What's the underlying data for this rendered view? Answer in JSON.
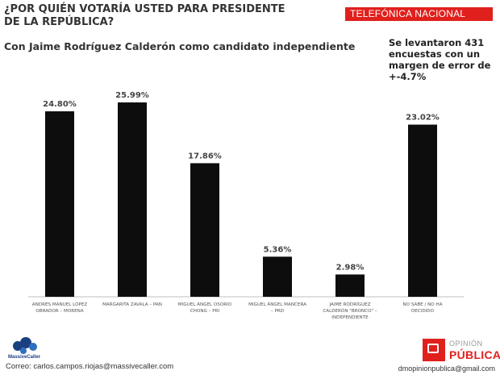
{
  "header": {
    "title_line1": "¿POR QUIÉN VOTARÍA USTED PARA PRESIDENTE",
    "title_line2": "DE LA REPÚBLICA?",
    "badge": "TELEFÓNICA NACIONAL",
    "subtitle": "Con Jaime Rodríguez Calderón como candidato independiente",
    "note_lines": [
      "Se levantaron 431",
      "encuestas con un",
      "margen de error de",
      "+-4.7%"
    ]
  },
  "chart_data": {
    "type": "bar",
    "categories": [
      [
        "ANDRÉS MANUEL LÓPEZ",
        "OBRADOR – MORENA"
      ],
      [
        "MARGARITA ZAVALA – PAN"
      ],
      [
        "MIGUEL ÁNGEL OSORIO",
        "CHONG – PRI"
      ],
      [
        "MIGUEL ÁNGEL MANCERA",
        "– PRD"
      ],
      [
        "JAIME RODRÍGUEZ",
        "CALDERÓN \"BRONCO\" –",
        "INDEPENDIENTE"
      ],
      [
        "NO SABE / NO HA",
        "DECIDIDO"
      ]
    ],
    "values": [
      24.8,
      25.99,
      17.86,
      5.36,
      2.98,
      23.02
    ],
    "value_labels": [
      "24.80%",
      "25.99%",
      "17.86%",
      "5.36%",
      "2.98%",
      "23.02%"
    ],
    "ylim": [
      0,
      25.99
    ],
    "bar_color": "#0d0d0d",
    "grid": false
  },
  "footer": {
    "email_left": "Correo: carlos.campos.riojas@massivecaller.com",
    "email_right": "dmopinionpublica@gmail.com",
    "logo_left_text": "MassiveCaller",
    "logo_right_line1": "OPINIÓN",
    "logo_right_line2": "PÚBLICA"
  },
  "colors": {
    "accent": "#e0201d",
    "logo_blue": "#1a3f80"
  }
}
